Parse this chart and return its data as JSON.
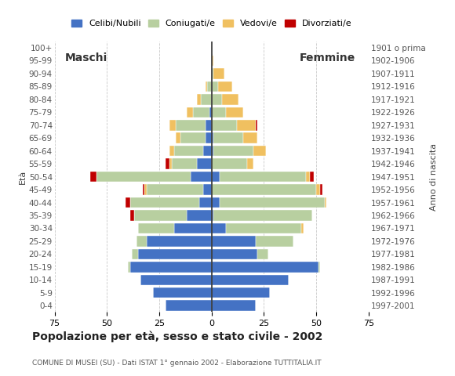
{
  "age_groups": [
    "0-4",
    "5-9",
    "10-14",
    "15-19",
    "20-24",
    "25-29",
    "30-34",
    "35-39",
    "40-44",
    "45-49",
    "50-54",
    "55-59",
    "60-64",
    "65-69",
    "70-74",
    "75-79",
    "80-84",
    "85-89",
    "90-94",
    "95-99",
    "100+"
  ],
  "birth_years": [
    "1997-2001",
    "1992-1996",
    "1987-1991",
    "1982-1986",
    "1977-1981",
    "1972-1976",
    "1967-1971",
    "1962-1966",
    "1957-1961",
    "1952-1956",
    "1947-1951",
    "1942-1946",
    "1937-1941",
    "1932-1936",
    "1927-1931",
    "1922-1926",
    "1917-1921",
    "1912-1916",
    "1907-1911",
    "1902-1906",
    "1901 o prima"
  ],
  "males": {
    "celibe": [
      22,
      28,
      34,
      39,
      35,
      31,
      18,
      12,
      6,
      4,
      10,
      7,
      4,
      3,
      3,
      1,
      0,
      0,
      0,
      0,
      0
    ],
    "coniugato": [
      0,
      0,
      0,
      1,
      3,
      5,
      17,
      25,
      33,
      27,
      45,
      12,
      14,
      12,
      14,
      8,
      5,
      2,
      0,
      0,
      0
    ],
    "vedovo": [
      0,
      0,
      0,
      0,
      0,
      0,
      0,
      0,
      0,
      1,
      0,
      1,
      2,
      2,
      3,
      3,
      2,
      1,
      0,
      0,
      0
    ],
    "divorziato": [
      0,
      0,
      0,
      0,
      0,
      0,
      0,
      2,
      2,
      1,
      3,
      2,
      0,
      0,
      0,
      0,
      0,
      0,
      0,
      0,
      0
    ]
  },
  "females": {
    "nubile": [
      21,
      28,
      37,
      51,
      22,
      21,
      7,
      1,
      4,
      0,
      4,
      0,
      1,
      1,
      0,
      0,
      0,
      0,
      0,
      0,
      0
    ],
    "coniugata": [
      0,
      0,
      0,
      1,
      5,
      18,
      36,
      47,
      50,
      50,
      41,
      17,
      19,
      14,
      12,
      7,
      5,
      3,
      1,
      0,
      0
    ],
    "vedova": [
      0,
      0,
      0,
      0,
      0,
      0,
      1,
      0,
      1,
      2,
      2,
      3,
      6,
      7,
      9,
      8,
      8,
      7,
      5,
      1,
      0
    ],
    "divorziata": [
      0,
      0,
      0,
      0,
      0,
      0,
      0,
      0,
      0,
      1,
      2,
      0,
      0,
      0,
      1,
      0,
      0,
      0,
      0,
      0,
      0
    ]
  },
  "colors": {
    "celibe": "#4472c4",
    "coniugato": "#b8cfa0",
    "vedovo": "#f0c060",
    "divorziato": "#c00000"
  },
  "xlim": 75,
  "title": "Popolazione per età, sesso e stato civile - 2002",
  "subtitle": "COMUNE DI MUSEI (SU) - Dati ISTAT 1° gennaio 2002 - Elaborazione TUTTITALIA.IT",
  "legend_labels": [
    "Celibi/Nubili",
    "Coniugati/e",
    "Vedovi/e",
    "Divorziati/e"
  ],
  "ylabel_left": "Età",
  "ylabel_right": "Anno di nascita",
  "label_maschi": "Maschi",
  "label_femmine": "Femmine",
  "bg_color": "#ffffff",
  "grid_color": "#bbbbbb"
}
